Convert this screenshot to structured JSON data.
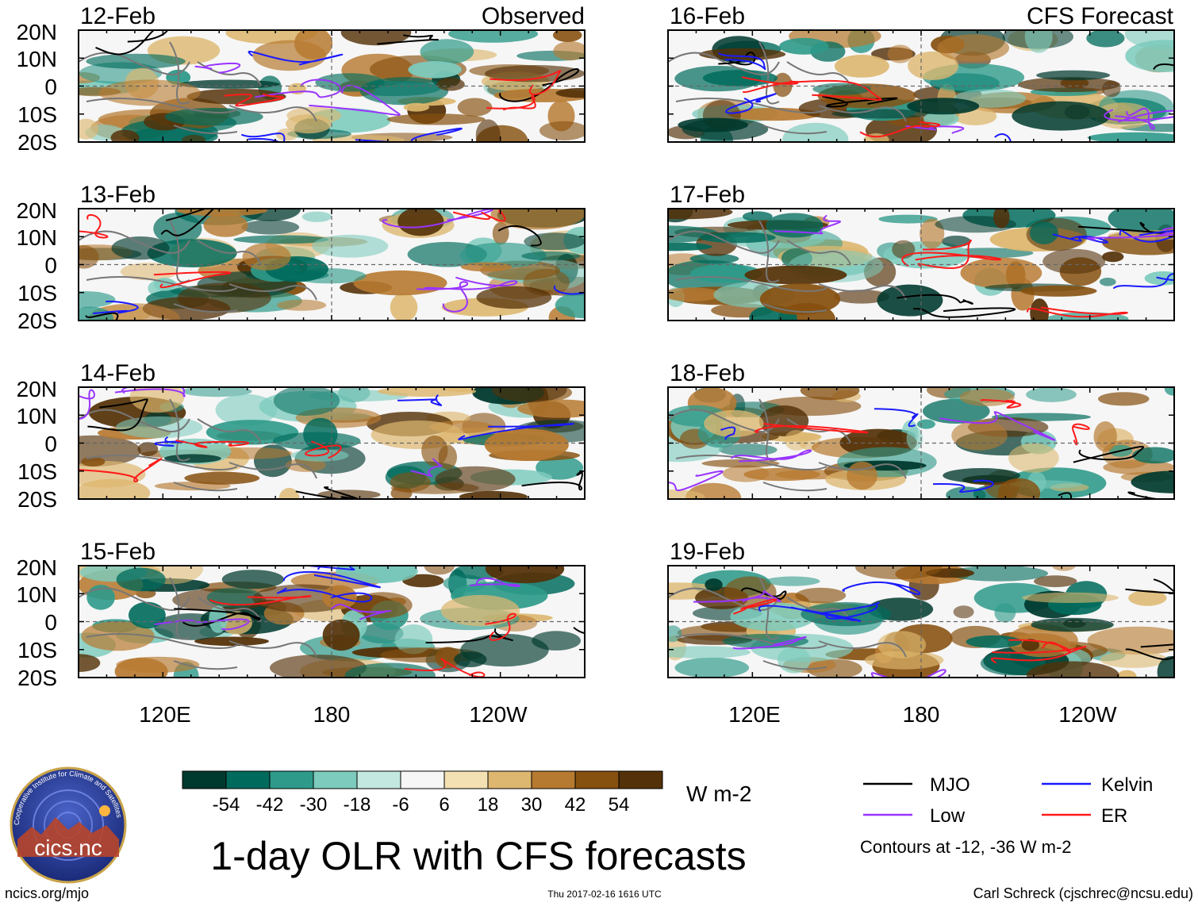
{
  "figure": {
    "title": "1-day OLR with CFS forecasts",
    "left_column_label": "Observed",
    "right_column_label": "CFS Forecast",
    "website": "ncics.org/mjo",
    "timestamp": "Thu 2017-02-16 1616 UTC",
    "author": "Carl Schreck (cjschrec@ncsu.edu)"
  },
  "panels": [
    {
      "date": "12-Feb",
      "column": "observed",
      "seed": 1
    },
    {
      "date": "13-Feb",
      "column": "observed",
      "seed": 2
    },
    {
      "date": "14-Feb",
      "column": "observed",
      "seed": 3
    },
    {
      "date": "15-Feb",
      "column": "observed",
      "seed": 4
    },
    {
      "date": "16-Feb",
      "column": "forecast",
      "seed": 5
    },
    {
      "date": "17-Feb",
      "column": "forecast",
      "seed": 6
    },
    {
      "date": "18-Feb",
      "column": "forecast",
      "seed": 7
    },
    {
      "date": "19-Feb",
      "column": "forecast",
      "seed": 8
    }
  ],
  "axes": {
    "lat_labels": [
      "20N",
      "10N",
      "0",
      "10S",
      "20S"
    ],
    "lat_values": [
      20,
      10,
      0,
      -10,
      -20
    ],
    "lon_labels": [
      "120E",
      "180",
      "120W"
    ],
    "lon_values": [
      120,
      180,
      240
    ],
    "lon_range": [
      90,
      270
    ],
    "lat_range": [
      -20,
      20
    ]
  },
  "colorbar": {
    "unit": "W m-2",
    "tick_labels": [
      "-54",
      "-42",
      "-30",
      "-18",
      "-6",
      "6",
      "18",
      "30",
      "42",
      "54"
    ],
    "colors": [
      "#00392e",
      "#006b5c",
      "#2e9a8a",
      "#7dcbbd",
      "#c3e8e0",
      "#f6f6f6",
      "#f3e1b4",
      "#ddb76f",
      "#b77a31",
      "#86500f",
      "#543108"
    ]
  },
  "legend": {
    "items": [
      {
        "label": "MJO",
        "color": "#000000"
      },
      {
        "label": "Kelvin",
        "color": "#1a1aff"
      },
      {
        "label": "Low",
        "color": "#9933ff"
      },
      {
        "label": "ER",
        "color": "#ff1a1a"
      }
    ],
    "note": "Contours at -12, -36 W m-2"
  },
  "logo": {
    "text": "cics.nc",
    "ring_text": "Cooperative Institute for Climate and Satellites"
  }
}
